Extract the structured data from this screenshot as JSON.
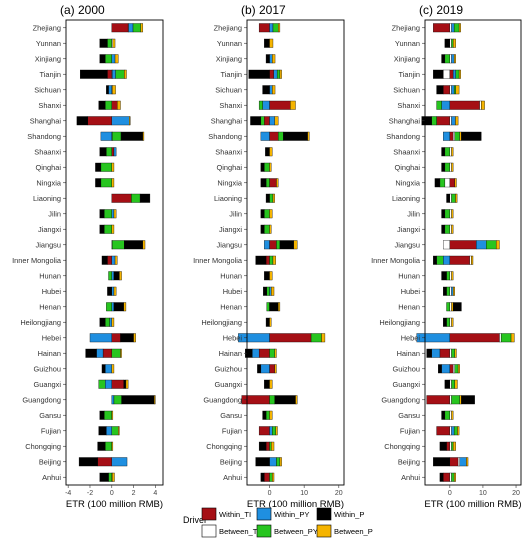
{
  "legend": {
    "title": "Driver",
    "items": [
      {
        "key": "within_ti",
        "label": "Within_TI",
        "color": "#a50f15"
      },
      {
        "key": "between_ti",
        "label": "Between_TI",
        "color": "#ffffff"
      },
      {
        "key": "within_py",
        "label": "Within_PY",
        "color": "#1f8fe0"
      },
      {
        "key": "between_py",
        "label": "Between_PY",
        "color": "#27c51f"
      },
      {
        "key": "within_p",
        "label": "Within_P",
        "color": "#000000"
      },
      {
        "key": "between_p",
        "label": "Between_P",
        "color": "#f5b400"
      }
    ]
  },
  "chart_data": [
    {
      "type": "bar",
      "orientation": "horizontal",
      "stacked": "diverging",
      "title": "(a) 2000",
      "xlabel": "ETR (100 million RMB)",
      "xlim": [
        -4.2,
        4.7
      ],
      "xticks": [
        -4,
        -2,
        0,
        2,
        4
      ],
      "categories": [
        "Zhejiang",
        "Yunnan",
        "Xinjiang",
        "Tianjin",
        "Sichuan",
        "Shanxi",
        "Shanghai",
        "Shandong",
        "Shaanxi",
        "Qinghai",
        "Ningxia",
        "Liaoning",
        "Jilin",
        "Jiangxi",
        "Jiangsu",
        "Inner Mongolia",
        "Hunan",
        "Hubei",
        "Henan",
        "Heilongjiang",
        "Hebei",
        "Hainan",
        "Guizhou",
        "Guangxi",
        "Guangdong",
        "Gansu",
        "Fujian",
        "Chongqing",
        "Beijing",
        "Anhui"
      ],
      "series": [
        {
          "name": "Within_TI",
          "values": [
            1.5,
            0,
            0,
            -0.4,
            0,
            0.5,
            -2.2,
            0,
            0.2,
            0,
            0,
            1.8,
            0,
            0,
            0,
            -0.4,
            0,
            0,
            0,
            0,
            0.8,
            -0.8,
            0,
            1.1,
            0,
            0,
            0,
            0,
            -1.3,
            0
          ]
        },
        {
          "name": "Between_TI",
          "values": [
            0.05,
            0.1,
            0,
            0.05,
            0.05,
            0,
            0,
            0.05,
            0,
            0,
            0,
            0,
            0,
            0,
            0.05,
            0,
            0,
            0,
            0,
            0,
            0,
            0,
            0,
            0,
            0,
            0,
            0,
            0,
            0,
            0.05
          ]
        },
        {
          "name": "Within_PY",
          "values": [
            0.4,
            0,
            0.3,
            0.3,
            -0.3,
            0,
            1.6,
            -1.0,
            0.2,
            0,
            0,
            0,
            0.2,
            0,
            0,
            0.3,
            0.2,
            0.2,
            0.2,
            -0.2,
            -2.0,
            -0.6,
            -0.6,
            -0.6,
            0.2,
            0,
            -0.5,
            0,
            1.4,
            0
          ]
        },
        {
          "name": "Between_PY",
          "values": [
            0.7,
            -0.4,
            -0.6,
            0.8,
            0,
            -0.6,
            0,
            0.8,
            -0.5,
            -1.0,
            -1.0,
            0.8,
            -0.7,
            -0.7,
            1.1,
            0,
            -0.3,
            0,
            -0.5,
            -0.4,
            0,
            0.8,
            0,
            -0.6,
            0.7,
            -0.7,
            0.6,
            -0.6,
            0,
            -0.3
          ]
        },
        {
          "name": "Within_P",
          "values": [
            0,
            -0.7,
            -0.5,
            -2.5,
            -0.2,
            -0.6,
            -1.0,
            2.0,
            -0.6,
            -0.5,
            -0.5,
            0.9,
            -0.4,
            -0.4,
            1.7,
            -0.5,
            0.5,
            -0.4,
            0.9,
            -0.5,
            1.2,
            -1.0,
            -0.3,
            0.2,
            3.0,
            -0.4,
            -0.7,
            -0.7,
            -1.7,
            -0.8
          ]
        },
        {
          "name": "Between_P",
          "values": [
            0.2,
            0.2,
            0.3,
            0.2,
            0.3,
            0.3,
            0.1,
            0.1,
            0,
            0.2,
            0.2,
            0,
            0.2,
            0.2,
            0.2,
            0.2,
            0.2,
            0.2,
            0.2,
            0.2,
            0.2,
            0.1,
            0.2,
            0.2,
            0.1,
            0.1,
            0.1,
            0.1,
            0,
            0.2
          ]
        }
      ]
    },
    {
      "type": "bar",
      "orientation": "horizontal",
      "stacked": "diverging",
      "title": "(b) 2017",
      "xlabel": "ETR (100 million RMB)",
      "xlim": [
        -6.5,
        21.5
      ],
      "xticks": [
        0,
        10,
        20
      ],
      "categories": [
        "Zhejiang",
        "Yunnan",
        "Xinjiang",
        "Tianjin",
        "Sichuan",
        "Shanxi",
        "Shanghai",
        "Shandong",
        "Shaanxi",
        "Qinghai",
        "Ningxia",
        "Liaoning",
        "Jilin",
        "Jiangxi",
        "Jiangsu",
        "Inner Mongolia",
        "Hunan",
        "Hubei",
        "Henan",
        "Heilongjiang",
        "Hebei",
        "Hainan",
        "Guizhou",
        "Guangxi",
        "Guangdong",
        "Gansu",
        "Fujian",
        "Chongqing",
        "Beijing",
        "Anhui"
      ],
      "series": [
        {
          "name": "Within_TI",
          "values": [
            -3.0,
            0,
            0,
            1.2,
            0,
            6.0,
            -1.5,
            2.5,
            0,
            0,
            2.0,
            0,
            0,
            0,
            2.0,
            -1.0,
            0,
            0,
            0,
            0,
            12.0,
            -3.0,
            1.5,
            0,
            -8.0,
            0,
            -3.0,
            -1.0,
            0,
            -1.5
          ]
        },
        {
          "name": "Between_TI",
          "values": [
            0,
            0,
            0,
            0,
            0,
            0,
            0,
            0,
            0,
            0,
            0,
            0,
            0,
            0,
            0,
            0,
            0,
            0,
            0,
            0,
            0,
            0,
            0,
            0,
            0,
            0,
            0,
            0,
            0,
            0
          ]
        },
        {
          "name": "Within_PY",
          "values": [
            1.0,
            0,
            0.8,
            1.0,
            0.8,
            -2.0,
            1.5,
            -2.5,
            0,
            0,
            0,
            0,
            0,
            0,
            -1.5,
            0,
            0,
            0.5,
            0,
            0,
            -9.0,
            -2.0,
            -2.5,
            0,
            0,
            0,
            0.8,
            0,
            2.0,
            0
          ]
        },
        {
          "name": "Between_PY",
          "values": [
            1.5,
            0,
            0,
            0.8,
            0,
            -1.0,
            -1.0,
            1.5,
            0,
            -1.5,
            -1.0,
            1.0,
            -1.5,
            -1.5,
            1.0,
            1.0,
            0,
            -0.8,
            -0.8,
            0,
            3.0,
            1.5,
            0,
            0,
            1.5,
            -1.0,
            1.0,
            0.5,
            1.0,
            0.8
          ]
        },
        {
          "name": "Within_P",
          "values": [
            0,
            -1.5,
            -1.0,
            -6.0,
            -2.0,
            0,
            -3.0,
            7.0,
            -1.2,
            -1.0,
            -1.5,
            -1.0,
            -1.0,
            -1.0,
            4.0,
            -3.0,
            -1.5,
            -1.0,
            2.5,
            -1.0,
            0,
            -2.0,
            -1.0,
            -1.5,
            6.0,
            -1.0,
            0,
            -2.0,
            -4.0,
            -1.0
          ]
        },
        {
          "name": "Between_P",
          "values": [
            0.5,
            1.0,
            0.8,
            0.5,
            0.8,
            1.5,
            1.0,
            0.5,
            0.8,
            0.5,
            0.5,
            0.5,
            0.8,
            0.5,
            1.0,
            0.8,
            0.8,
            0.8,
            0.5,
            0.5,
            1.0,
            0.5,
            0.5,
            0.8,
            0.5,
            0.8,
            0.5,
            0.8,
            0.5,
            0.5
          ]
        }
      ]
    },
    {
      "type": "bar",
      "orientation": "horizontal",
      "stacked": "diverging",
      "title": "(c) 2019",
      "xlabel": "ETR (100 million RMB)",
      "xlim": [
        -7.5,
        21.5
      ],
      "xticks": [
        0,
        10,
        20
      ],
      "categories": [
        "Zhejiang",
        "Yunnan",
        "Xinjiang",
        "Tianjin",
        "Sichuan",
        "Shanxi",
        "Shanghai",
        "Shandong",
        "Shaanxi",
        "Qinghai",
        "Ningxia",
        "Liaoning",
        "Jilin",
        "Jiangxi",
        "Jiangsu",
        "Inner Mongolia",
        "Hunan",
        "Hubei",
        "Henan",
        "Heilongjiang",
        "Hebei",
        "Hainan",
        "Guizhou",
        "Guangxi",
        "Guangdong",
        "Gansu",
        "Fujian",
        "Chongqing",
        "Beijing",
        "Anhui"
      ],
      "series": [
        {
          "name": "Within_TI",
          "values": [
            -5.0,
            0,
            0,
            1.0,
            -2.0,
            9.0,
            -4.0,
            1.0,
            0,
            0,
            1.5,
            0,
            0,
            0,
            8.0,
            6.0,
            0,
            0,
            0,
            0,
            15.0,
            -3.0,
            1.0,
            0,
            -7.0,
            0,
            -4.0,
            -1.0,
            2.5,
            -2.0
          ]
        },
        {
          "name": "Between_TI",
          "values": [
            0.5,
            0.5,
            0.5,
            -2.0,
            0.5,
            0.5,
            0.5,
            0.5,
            0.5,
            0.5,
            -1.5,
            0.5,
            0.5,
            0.5,
            -2.0,
            0.5,
            0.5,
            0.5,
            0.5,
            0.5,
            0.5,
            0.5,
            0.5,
            0.5,
            0.5,
            0.5,
            0.5,
            0.5,
            0.5,
            0.5
          ]
        },
        {
          "name": "Within_PY",
          "values": [
            0.8,
            0,
            0.8,
            0.8,
            0.8,
            -2.5,
            1.2,
            -2.0,
            0,
            0,
            0,
            0,
            0,
            0,
            3.0,
            -2.0,
            0,
            0.5,
            0,
            0,
            -10.0,
            -2.5,
            -2.5,
            0,
            0,
            0,
            0.8,
            0,
            2.0,
            0
          ]
        },
        {
          "name": "Between_PY",
          "values": [
            1.5,
            0.5,
            -1.5,
            1.0,
            0.5,
            -1.5,
            -1.5,
            1.5,
            -1.5,
            -1.5,
            -1.5,
            1.2,
            -1.5,
            -1.5,
            3.0,
            -2.0,
            -1.0,
            -1.0,
            -1.0,
            -1.0,
            3.0,
            1.0,
            1.0,
            1.0,
            2.5,
            -1.5,
            1.0,
            0.5,
            0,
            0.8
          ]
        },
        {
          "name": "Between_P",
          "values": [
            0.5,
            0.8,
            0.5,
            0.5,
            1.0,
            1.0,
            0.8,
            0.5,
            0.5,
            0.5,
            0.5,
            0.5,
            0.5,
            0.5,
            1.0,
            0.5,
            0.5,
            0.5,
            0.5,
            0.5,
            1.0,
            0.5,
            0.5,
            0.8,
            0.5,
            0.5,
            0.5,
            0.8,
            0.5,
            0.5
          ]
        },
        {
          "name": "Within_P",
          "values": [
            0,
            -1.5,
            -1.0,
            -3.0,
            -2.0,
            0,
            -3.0,
            6.0,
            -1.0,
            -1.0,
            -1.5,
            -1.0,
            -1.0,
            -1.0,
            0,
            -1.0,
            -1.5,
            -1.0,
            2.5,
            -1.0,
            0,
            -1.5,
            -1.0,
            -1.5,
            4.0,
            -1.0,
            0,
            -2.0,
            -5.0,
            -1.0
          ]
        }
      ]
    }
  ]
}
